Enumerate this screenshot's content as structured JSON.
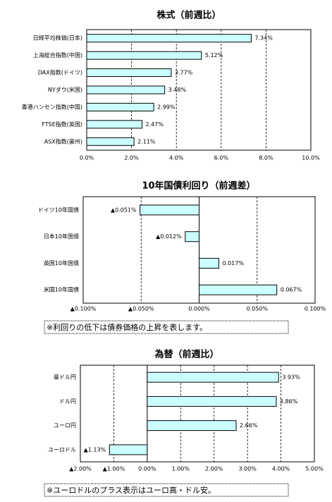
{
  "chart_data": [
    {
      "type": "bar",
      "orientation": "horizontal",
      "title": "株式（前週比）",
      "categories": [
        "日経平均株価(日本)",
        "上海総合指数(中国)",
        "DAX指数(ドイツ)",
        "NYダウ(米国)",
        "香港ハンセン指数(中国)",
        "FTSE指数(英国)",
        "ASX指数(豪州)"
      ],
      "values": [
        7.34,
        5.12,
        3.77,
        3.48,
        2.99,
        2.47,
        2.11
      ],
      "value_labels": [
        "7.34%",
        "5.12%",
        "3.77%",
        "3.48%",
        "2.99%",
        "2.47%",
        "2.11%"
      ],
      "color": "#ccffff",
      "negative_color": "#ff0000",
      "xlim": [
        0,
        10
      ],
      "xticks": [
        {
          "value": 0,
          "label": "0.0%"
        },
        {
          "value": 2,
          "label": "2.0%"
        },
        {
          "value": 4,
          "label": "4.0%"
        },
        {
          "value": 6,
          "label": "6.0%"
        },
        {
          "value": 8,
          "label": "8.0%"
        },
        {
          "value": 10,
          "label": "10.0%"
        }
      ],
      "grid": true
    },
    {
      "type": "bar",
      "orientation": "horizontal",
      "title": "10年国債利回り（前週差）",
      "categories": [
        "ドイツ10年国債",
        "日本10年国債",
        "英国10年国債",
        "米国10年国債"
      ],
      "values": [
        -0.051,
        -0.012,
        0.017,
        0.067
      ],
      "value_labels": [
        "▲0.051%",
        "▲0.012%",
        "0.017%",
        "0.067%"
      ],
      "color": "#ccffff",
      "negative_color": "#ff0000",
      "xlim": [
        -0.1,
        0.1
      ],
      "xticks": [
        {
          "value": -0.1,
          "label": "▲0.100%"
        },
        {
          "value": -0.05,
          "label": "▲0.050%"
        },
        {
          "value": 0,
          "label": "0.000%"
        },
        {
          "value": 0.05,
          "label": "0.050%"
        },
        {
          "value": 0.1,
          "label": "0.100%"
        }
      ],
      "grid": true,
      "note": "※利回りの低下は債券価格の上昇を表します。"
    },
    {
      "type": "bar",
      "orientation": "horizontal",
      "title": "為替（前週比）",
      "categories": [
        "豪ドル円",
        "ドル円",
        "ユーロ円",
        "ユーロドル"
      ],
      "values": [
        3.93,
        3.86,
        2.66,
        -1.13
      ],
      "value_labels": [
        "3.93%",
        "3.86%",
        "2.66%",
        "▲1.13%"
      ],
      "color": "#ccffff",
      "negative_color": "#ff0000",
      "xlim": [
        -2,
        5
      ],
      "xticks": [
        {
          "value": -2,
          "label": "▲2.00%"
        },
        {
          "value": -1,
          "label": "▲1.00%"
        },
        {
          "value": 0,
          "label": "0.00%"
        },
        {
          "value": 1,
          "label": "1.00%"
        },
        {
          "value": 2,
          "label": "2.00%"
        },
        {
          "value": 3,
          "label": "3.00%"
        },
        {
          "value": 4,
          "label": "4.00%"
        },
        {
          "value": 5,
          "label": "5.00%"
        }
      ],
      "grid": true,
      "note": "※ユーロドルのプラス表示はユーロ高・ドル安。"
    }
  ]
}
